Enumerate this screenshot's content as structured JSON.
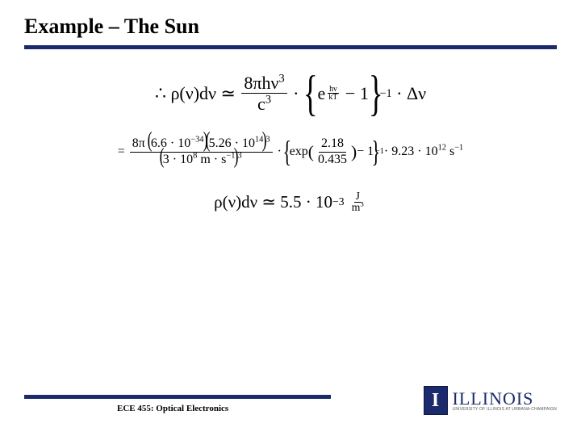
{
  "title": "Example – The Sun",
  "colors": {
    "rule": "#1a2a6c",
    "logo_bg": "#1a2a6c",
    "text": "#000000",
    "background": "#ffffff"
  },
  "equation1": {
    "therefore": "∴",
    "lhs": "ρ(ν)dν",
    "approx": "≃",
    "frac_num_a": "8πhν",
    "frac_num_a_sup": "3",
    "frac_den_a": "c",
    "frac_den_a_sup": "3",
    "dot": "·",
    "exp_base": "e",
    "exp_frac_num": "hν",
    "exp_frac_den": "kT",
    "minus1": "− 1",
    "brace_sup": "−1",
    "delta_nu": "Δν"
  },
  "equation2": {
    "equals": "=",
    "num_a": "8π",
    "num_b": "6.6 · 10",
    "num_b_sup": "−34",
    "num_c": "5.26 · 10",
    "num_c_sup": "14",
    "num_c_outer_sup": "3",
    "den_a": "3 · 10",
    "den_a_sup": "8",
    "den_units": " m · s",
    "den_units_sup": "−1",
    "den_outer_sup": "3",
    "dot": "·",
    "exp_word": "exp",
    "exp_frac_num": "2.18",
    "exp_frac_den": "0.435",
    "minus1": "− 1",
    "brace_sup": "−1",
    "tail_val": "9.23 · 10",
    "tail_val_sup": "12",
    "tail_unit": " s",
    "tail_unit_sup": "−1"
  },
  "equation3": {
    "lhs": "ρ(ν)dν",
    "approx": "≃",
    "val": "5.5 · 10",
    "val_sup": "−3",
    "unit_num": "J",
    "unit_den_a": "m",
    "unit_den_sup": "3"
  },
  "footer": {
    "course": "ECE 455: Optical Electronics",
    "logo_main": "ILLINOIS",
    "logo_sub": "UNIVERSITY OF ILLINOIS AT URBANA-CHAMPAIGN",
    "logo_letter": "I"
  }
}
